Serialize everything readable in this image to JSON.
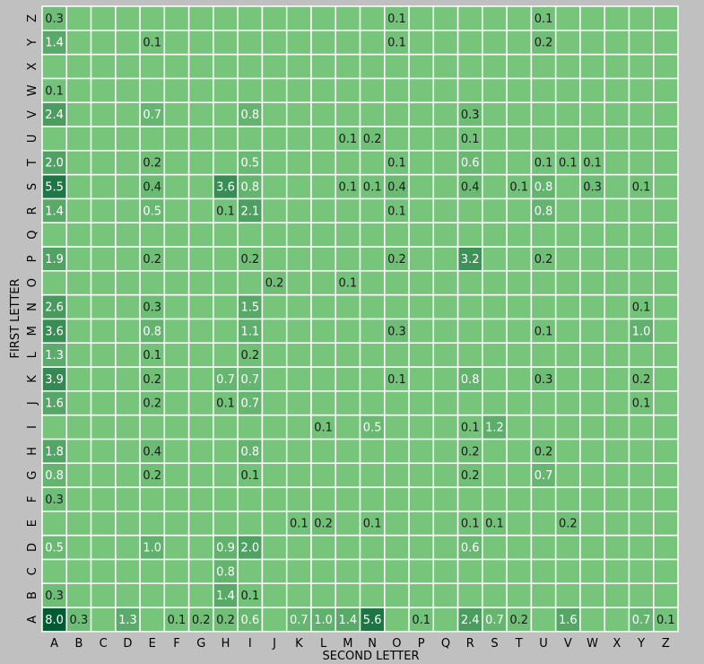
{
  "chart_data": {
    "type": "heatmap",
    "xlabel": "SECOND LETTER",
    "ylabel": "FIRST LETTER",
    "x_categories": [
      "A",
      "B",
      "C",
      "D",
      "E",
      "F",
      "G",
      "H",
      "I",
      "J",
      "K",
      "L",
      "M",
      "N",
      "O",
      "P",
      "Q",
      "R",
      "S",
      "T",
      "U",
      "V",
      "W",
      "X",
      "Y",
      "Z"
    ],
    "y_categories": [
      "A",
      "B",
      "C",
      "D",
      "E",
      "F",
      "G",
      "H",
      "I",
      "J",
      "K",
      "L",
      "M",
      "N",
      "O",
      "P",
      "Q",
      "R",
      "S",
      "T",
      "U",
      "V",
      "W",
      "X",
      "Y",
      "Z"
    ],
    "value_range": [
      0,
      8.0
    ],
    "grid": true,
    "colors": {
      "background": "#c0c0c0",
      "base_cell": "#77c57b",
      "cell_border": "#ffffff",
      "light_text": "#ffffff",
      "dark_text": "#1a1a1a"
    },
    "rows": {
      "A": {
        "A": 8.0,
        "B": 0.3,
        "D": 1.3,
        "F": 0.1,
        "G": 0.2,
        "H": 0.2,
        "I": 0.6,
        "K": 0.7,
        "L": 1.0,
        "M": 1.4,
        "N": 5.6,
        "P": 0.1,
        "R": 2.4,
        "S": 0.7,
        "T": 0.2,
        "V": 1.6,
        "Y": 0.7,
        "Z": 0.1
      },
      "B": {
        "A": 0.3,
        "H": 1.4,
        "I": 0.1
      },
      "C": {
        "H": 0.8
      },
      "D": {
        "A": 0.5,
        "E": 1.0,
        "H": 0.9,
        "I": 2.0,
        "R": 0.6
      },
      "E": {
        "K": 0.1,
        "L": 0.2,
        "N": 0.1,
        "R": 0.1,
        "S": 0.1,
        "V": 0.2
      },
      "F": {
        "A": 0.3
      },
      "G": {
        "A": 0.8,
        "E": 0.2,
        "I": 0.1,
        "R": 0.2,
        "U": 0.7
      },
      "H": {
        "A": 1.8,
        "E": 0.4,
        "I": 0.8,
        "R": 0.2,
        "U": 0.2
      },
      "I": {
        "L": 0.1,
        "N": 0.5,
        "R": 0.1,
        "S": 1.2
      },
      "J": {
        "A": 1.6,
        "E": 0.2,
        "H": 0.1,
        "I": 0.7,
        "Y": 0.1
      },
      "K": {
        "A": 3.9,
        "E": 0.2,
        "H": 0.7,
        "I": 0.7,
        "O": 0.1,
        "R": 0.8,
        "U": 0.3,
        "Y": 0.2
      },
      "L": {
        "A": 1.3,
        "E": 0.1,
        "I": 0.2
      },
      "M": {
        "A": 3.6,
        "E": 0.8,
        "I": 1.1,
        "O": 0.3,
        "U": 0.1,
        "Y": 1.0
      },
      "N": {
        "A": 2.6,
        "E": 0.3,
        "I": 1.5,
        "Y": 0.1
      },
      "O": {
        "J": 0.2,
        "M": 0.1
      },
      "P": {
        "A": 1.9,
        "E": 0.2,
        "I": 0.2,
        "O": 0.2,
        "R": 3.2,
        "U": 0.2
      },
      "Q": {},
      "R": {
        "A": 1.4,
        "E": 0.5,
        "H": 0.1,
        "I": 2.1,
        "O": 0.1,
        "U": 0.8
      },
      "S": {
        "A": 5.5,
        "E": 0.4,
        "H": 3.6,
        "I": 0.8,
        "M": 0.1,
        "N": 0.1,
        "O": 0.4,
        "R": 0.4,
        "T": 0.1,
        "U": 0.8,
        "W": 0.3,
        "Y": 0.1
      },
      "T": {
        "A": 2.0,
        "E": 0.2,
        "I": 0.5,
        "O": 0.1,
        "R": 0.6,
        "U": 0.1,
        "V": 0.1,
        "W": 0.1
      },
      "U": {
        "M": 0.1,
        "N": 0.2,
        "R": 0.1
      },
      "V": {
        "A": 2.4,
        "E": 0.7,
        "I": 0.8,
        "R": 0.3
      },
      "W": {
        "A": 0.1
      },
      "X": {},
      "Y": {
        "A": 1.4,
        "E": 0.1,
        "O": 0.1,
        "U": 0.2
      },
      "Z": {
        "A": 0.3,
        "O": 0.1,
        "U": 0.1
      }
    }
  }
}
